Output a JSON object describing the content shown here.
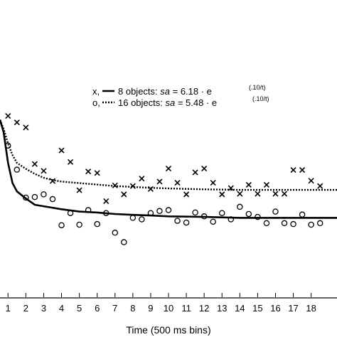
{
  "chart_data": {
    "type": "scatter",
    "xlabel": "Time (500 ms bins)",
    "xlim": [
      0.55,
      19.45
    ],
    "ylim": [
      0,
      1
    ],
    "x_ticks": [
      1,
      2,
      3,
      4,
      5,
      6,
      7,
      8,
      9,
      10,
      11,
      12,
      13,
      14,
      15,
      16,
      17,
      18
    ],
    "grid": false,
    "legend": {
      "placement": "upper-center",
      "entries": [
        {
          "marker": "x",
          "line": "solid",
          "marker_label": "x,",
          "text": "8 objects: ",
          "formula_var": "sa",
          "formula_eq": " = 6.18 · e",
          "formula_exp": "(.10/t)"
        },
        {
          "marker": "o",
          "line": "dotted",
          "marker_label": "o,",
          "text": "16 objects: ",
          "formula_var": "sa",
          "formula_eq": " = 5.48 · e",
          "formula_exp": "(.10/t)"
        }
      ]
    },
    "series": [
      {
        "marker": "x",
        "points": [
          [
            1,
            0.61
          ],
          [
            1.5,
            0.588
          ],
          [
            2,
            0.571
          ],
          [
            2.5,
            0.448
          ],
          [
            3,
            0.425
          ],
          [
            3.5,
            0.391
          ],
          [
            4,
            0.494
          ],
          [
            4.5,
            0.455
          ],
          [
            5,
            0.36
          ],
          [
            5.5,
            0.423
          ],
          [
            6,
            0.418
          ],
          [
            6.5,
            0.323
          ],
          [
            7,
            0.376
          ],
          [
            7.5,
            0.346
          ],
          [
            8,
            0.374
          ],
          [
            8.5,
            0.399
          ],
          [
            9,
            0.364
          ],
          [
            9.5,
            0.389
          ],
          [
            10,
            0.433
          ],
          [
            10.5,
            0.385
          ],
          [
            11,
            0.346
          ],
          [
            11.5,
            0.42
          ],
          [
            12,
            0.433
          ],
          [
            12.5,
            0.385
          ],
          [
            13,
            0.346
          ],
          [
            13.5,
            0.367
          ],
          [
            14,
            0.348
          ],
          [
            14.5,
            0.378
          ],
          [
            15,
            0.348
          ],
          [
            15.5,
            0.378
          ],
          [
            16,
            0.348
          ],
          [
            16.5,
            0.348
          ],
          [
            17,
            0.428
          ],
          [
            17.5,
            0.428
          ],
          [
            18,
            0.392
          ],
          [
            18.5,
            0.374
          ]
        ]
      },
      {
        "marker": "o",
        "points": [
          [
            1,
            0.51
          ],
          [
            1.5,
            0.429
          ],
          [
            2,
            0.335
          ],
          [
            2.5,
            0.337
          ],
          [
            3,
            0.346
          ],
          [
            3.5,
            0.33
          ],
          [
            4,
            0.242
          ],
          [
            4.5,
            0.283
          ],
          [
            5,
            0.244
          ],
          [
            5.5,
            0.293
          ],
          [
            6,
            0.246
          ],
          [
            6.5,
            0.283
          ],
          [
            7,
            0.217
          ],
          [
            7.5,
            0.185
          ],
          [
            8,
            0.267
          ],
          [
            8.5,
            0.262
          ],
          [
            9,
            0.283
          ],
          [
            9.5,
            0.29
          ],
          [
            10,
            0.293
          ],
          [
            10.5,
            0.257
          ],
          [
            11,
            0.251
          ],
          [
            11.5,
            0.285
          ],
          [
            12,
            0.272
          ],
          [
            12.5,
            0.254
          ],
          [
            13,
            0.283
          ],
          [
            13.5,
            0.262
          ],
          [
            14,
            0.304
          ],
          [
            14.5,
            0.28
          ],
          [
            15,
            0.27
          ],
          [
            15.5,
            0.249
          ],
          [
            16,
            0.288
          ],
          [
            16.5,
            0.249
          ],
          [
            17,
            0.246
          ],
          [
            17.5,
            0.278
          ],
          [
            18,
            0.244
          ],
          [
            18.5,
            0.249
          ]
        ]
      },
      {
        "name_ref": "8 objects",
        "line": "solid",
        "points": [
          [
            0.55,
            0.597
          ],
          [
            0.75,
            0.556
          ],
          [
            1,
            0.452
          ],
          [
            1.25,
            0.384
          ],
          [
            1.5,
            0.356
          ],
          [
            2,
            0.332
          ],
          [
            2.5,
            0.311
          ],
          [
            3,
            0.306
          ],
          [
            4,
            0.296
          ],
          [
            5,
            0.288
          ],
          [
            6,
            0.285
          ],
          [
            7,
            0.28
          ],
          [
            8,
            0.277
          ],
          [
            9,
            0.275
          ],
          [
            10,
            0.272
          ],
          [
            12,
            0.27
          ],
          [
            14,
            0.267
          ],
          [
            16,
            0.267
          ],
          [
            18,
            0.267
          ],
          [
            19.45,
            0.267
          ]
        ]
      },
      {
        "name_ref": "16 objects",
        "line": "dotted",
        "points": [
          [
            0.55,
            0.597
          ],
          [
            0.75,
            0.567
          ],
          [
            1,
            0.517
          ],
          [
            1.25,
            0.478
          ],
          [
            1.5,
            0.452
          ],
          [
            2,
            0.432
          ],
          [
            2.5,
            0.415
          ],
          [
            3,
            0.402
          ],
          [
            3.5,
            0.394
          ],
          [
            4,
            0.389
          ],
          [
            5,
            0.384
          ],
          [
            6,
            0.379
          ],
          [
            7,
            0.374
          ],
          [
            8,
            0.371
          ],
          [
            9,
            0.368
          ],
          [
            10,
            0.366
          ],
          [
            12,
            0.363
          ],
          [
            14,
            0.361
          ],
          [
            16,
            0.361
          ],
          [
            18,
            0.361
          ],
          [
            19.45,
            0.361
          ]
        ]
      }
    ]
  }
}
